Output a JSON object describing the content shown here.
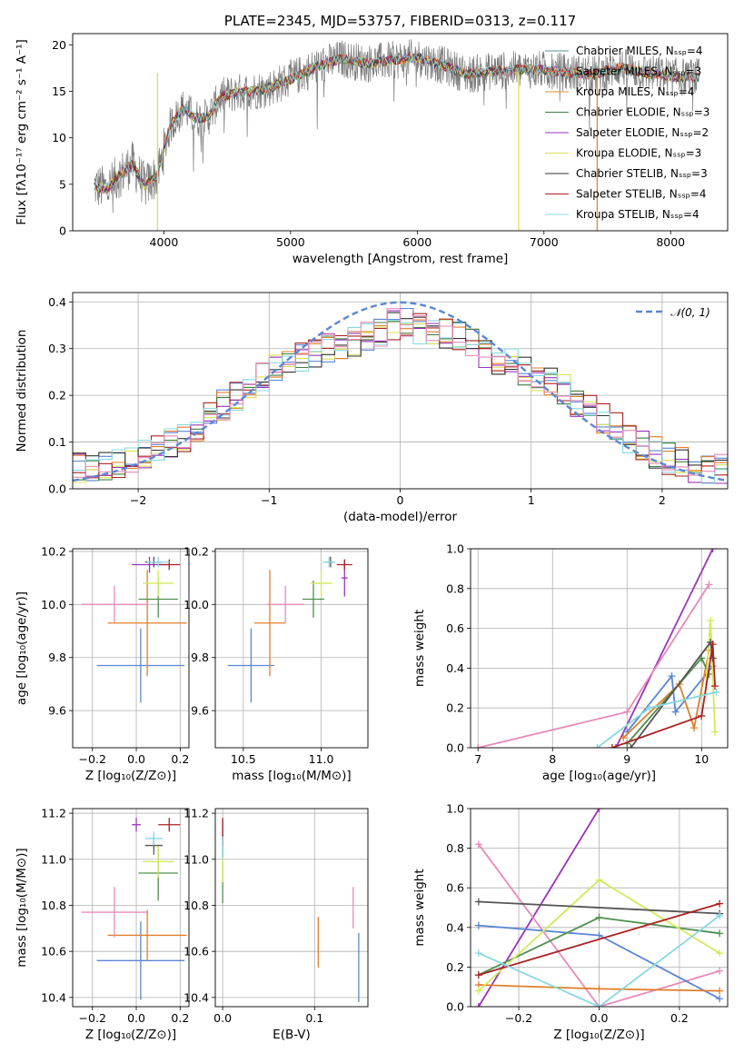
{
  "chart_data": [
    {
      "type": "line",
      "title": "PLATE=2345, MJD=53757, FIBERID=0313, z=0.117",
      "xlabel": "wavelength [Angstrom, rest frame]",
      "ylabel": "Flux [fλ10⁻¹⁷ erg cm⁻² s⁻¹ A⁻¹]",
      "xlim": [
        3280,
        8450
      ],
      "ylim": [
        0,
        21.2
      ],
      "xticks": [
        4000,
        5000,
        6000,
        7000,
        8000
      ],
      "yticks": [
        0,
        5,
        10,
        15,
        20
      ],
      "grid": false,
      "legend_position": "top-right",
      "spectrum_envelope": {
        "x": [
          3450,
          3550,
          3650,
          3750,
          3850,
          3950,
          4050,
          4150,
          4250,
          4350,
          4450,
          4600,
          4800,
          5000,
          5200,
          5400,
          5600,
          5800,
          6000,
          6200,
          6400,
          6600,
          6800,
          7000,
          7200,
          7400,
          7600,
          7800,
          8000,
          8200
        ],
        "y": [
          4.8,
          4.5,
          6.0,
          7.2,
          4.8,
          6.0,
          11.3,
          13.2,
          12.1,
          12.2,
          14.4,
          14.9,
          15.2,
          16.3,
          17.6,
          18.5,
          18.0,
          18.3,
          18.6,
          17.8,
          16.8,
          17.2,
          17.3,
          17.3,
          17.0,
          16.8,
          17.6,
          17.0,
          16.6,
          16.5
        ]
      },
      "series": [
        {
          "name": "Chabrier MILES, Nₛₛₚ=4",
          "color": "#5a8f8f"
        },
        {
          "name": "Salpeter MILES, Nₛₛₚ=3",
          "color": "#e06060"
        },
        {
          "name": "Kroupa MILES, Nₛₛₚ=4",
          "color": "#d98c3a"
        },
        {
          "name": "Chabrier ELODIE, Nₛₛₚ=3",
          "color": "#3f7f3f"
        },
        {
          "name": "Salpeter ELODIE, Nₛₛₚ=2",
          "color": "#9933bb"
        },
        {
          "name": "Kroupa ELODIE, Nₛₛₚ=3",
          "color": "#d8e05a"
        },
        {
          "name": "Chabrier STELIB, Nₛₛₚ=3",
          "color": "#333333"
        },
        {
          "name": "Salpeter STELIB, Nₛₛₚ=4",
          "color": "#aa2222"
        },
        {
          "name": "Kroupa STELIB, Nₛₛₚ=4",
          "color": "#88d8e0"
        }
      ]
    },
    {
      "type": "line",
      "xlabel": "(data-model)/error",
      "ylabel": "Normed distribution",
      "xlim": [
        -2.5,
        2.5
      ],
      "ylim": [
        0,
        0.42
      ],
      "xticks": [
        -2,
        -1,
        0,
        1,
        2
      ],
      "yticks": [
        0.0,
        0.1,
        0.2,
        0.3,
        0.4
      ],
      "grid": true,
      "legend": "𝒩(0, 1)",
      "legend_position": "top-right",
      "x": [
        -2.4,
        -2.2,
        -2.0,
        -1.8,
        -1.6,
        -1.4,
        -1.2,
        -1.0,
        -0.8,
        -0.6,
        -0.4,
        -0.2,
        0.0,
        0.2,
        0.4,
        0.6,
        0.8,
        1.0,
        1.2,
        1.4,
        1.6,
        1.8,
        2.0,
        2.2,
        2.4
      ],
      "histogram_mean": [
        0.045,
        0.055,
        0.07,
        0.09,
        0.12,
        0.17,
        0.21,
        0.25,
        0.28,
        0.3,
        0.31,
        0.33,
        0.36,
        0.34,
        0.33,
        0.3,
        0.27,
        0.25,
        0.22,
        0.18,
        0.14,
        0.1,
        0.07,
        0.05,
        0.04
      ]
    },
    {
      "type": "scatter",
      "xlabel": "Z [log₁₀(Z/Z⊙)]",
      "ylabel": "age  [log₁₀(age/yr)]",
      "xlim": [
        -0.29,
        0.24
      ],
      "ylim": [
        9.46,
        10.21
      ],
      "xticks": [
        -0.2,
        0.0,
        0.2
      ],
      "yticks": [
        9.6,
        9.8,
        10.0,
        10.2
      ],
      "points": [
        {
          "x": 0.02,
          "y": 9.77,
          "xerr": 0.2,
          "yerr": 0.14,
          "color": "#5b86d6"
        },
        {
          "x": 0.05,
          "y": 9.93,
          "xerr": 0.18,
          "yerr": 0.2,
          "color": "#e07f2a"
        },
        {
          "x": -0.1,
          "y": 10.0,
          "xerr": 0.15,
          "yerr": 0.07,
          "color": "#e88ab8"
        },
        {
          "x": 0.1,
          "y": 10.02,
          "xerr": 0.09,
          "yerr": 0.07,
          "color": "#4e8f4e"
        },
        {
          "x": 0.1,
          "y": 10.08,
          "xerr": 0.07,
          "yerr": 0.05,
          "color": "#d4e85a"
        },
        {
          "x": 0.08,
          "y": 10.16,
          "xerr": 0.04,
          "yerr": 0.02,
          "color": "#555555"
        },
        {
          "x": 0.06,
          "y": 10.15,
          "xerr": 0.08,
          "yerr": 0.03,
          "color": "#9933bb"
        },
        {
          "x": 0.15,
          "y": 10.15,
          "xerr": 0.05,
          "yerr": 0.02,
          "color": "#aa2222"
        },
        {
          "x": 0.1,
          "y": 10.16,
          "xerr": 0.05,
          "yerr": 0.02,
          "color": "#88d8e0"
        }
      ]
    },
    {
      "type": "scatter",
      "xlabel": "mass [log₁₀(M/M⊙)]",
      "xlim": [
        10.32,
        11.3
      ],
      "ylim": [
        9.46,
        10.21
      ],
      "xticks": [
        10.5,
        11.0
      ],
      "yticks": [
        9.6,
        9.8,
        10.0,
        10.2
      ],
      "points": [
        {
          "x": 10.55,
          "y": 9.77,
          "xerr": 0.15,
          "yerr": 0.14,
          "color": "#5b86d6"
        },
        {
          "x": 10.67,
          "y": 9.93,
          "xerr": 0.1,
          "yerr": 0.2,
          "color": "#e07f2a"
        },
        {
          "x": 10.77,
          "y": 10.0,
          "xerr": 0.12,
          "yerr": 0.07,
          "color": "#e88ab8"
        },
        {
          "x": 10.95,
          "y": 10.02,
          "xerr": 0.07,
          "yerr": 0.07,
          "color": "#4e8f4e"
        },
        {
          "x": 11.0,
          "y": 10.08,
          "xerr": 0.07,
          "yerr": 0.05,
          "color": "#d4e85a"
        },
        {
          "x": 11.06,
          "y": 10.16,
          "xerr": 0.03,
          "yerr": 0.02,
          "color": "#555555"
        },
        {
          "x": 11.15,
          "y": 10.1,
          "xerr": 0.02,
          "yerr": 0.07,
          "color": "#9933bb"
        },
        {
          "x": 11.15,
          "y": 10.15,
          "xerr": 0.05,
          "yerr": 0.02,
          "color": "#aa2222"
        },
        {
          "x": 11.05,
          "y": 10.16,
          "xerr": 0.04,
          "yerr": 0.02,
          "color": "#88d8e0"
        }
      ]
    },
    {
      "type": "line",
      "xlabel": "age  [log₁₀(age/yr)]",
      "ylabel": "mass weight",
      "xlim": [
        6.9,
        10.35
      ],
      "ylim": [
        0,
        1.0
      ],
      "xticks": [
        7,
        8,
        9,
        10
      ],
      "yticks": [
        0.0,
        0.2,
        0.4,
        0.6,
        0.8,
        1.0
      ],
      "grid": true,
      "series": [
        {
          "color": "#9933bb",
          "x": [
            8.85,
            10.15
          ],
          "y": [
            0.0,
            1.0
          ]
        },
        {
          "color": "#e88ab8",
          "x": [
            7.0,
            9.0,
            10.1
          ],
          "y": [
            0.0,
            0.18,
            0.82
          ]
        },
        {
          "color": "#5b86d6",
          "x": [
            9.0,
            9.6,
            9.65,
            10.15
          ],
          "y": [
            0.08,
            0.36,
            0.18,
            0.41
          ]
        },
        {
          "color": "#e07f2a",
          "x": [
            8.95,
            9.7,
            9.9,
            10.1
          ],
          "y": [
            0.05,
            0.32,
            0.1,
            0.49
          ]
        },
        {
          "color": "#4e8f4e",
          "x": [
            9.0,
            10.0,
            10.1
          ],
          "y": [
            0.02,
            0.45,
            0.37
          ]
        },
        {
          "color": "#d4e85a",
          "x": [
            10.05,
            10.12,
            10.18
          ],
          "y": [
            0.27,
            0.64,
            0.08
          ]
        },
        {
          "color": "#555555",
          "x": [
            9.05,
            10.12,
            10.15
          ],
          "y": [
            0.0,
            0.53,
            0.45
          ]
        },
        {
          "color": "#aa2222",
          "x": [
            8.8,
            10.0,
            10.15,
            10.18
          ],
          "y": [
            0.0,
            0.16,
            0.52,
            0.31
          ]
        },
        {
          "color": "#88d8e0",
          "x": [
            8.6,
            9.3,
            10.2
          ],
          "y": [
            0.0,
            0.2,
            0.28
          ]
        }
      ]
    },
    {
      "type": "scatter",
      "xlabel": "Z [log₁₀(Z/Z⊙)]",
      "ylabel": "mass [log₁₀(M/M⊙)]",
      "xlim": [
        -0.29,
        0.24
      ],
      "ylim": [
        10.36,
        11.22
      ],
      "xticks": [
        -0.2,
        0.0,
        0.2
      ],
      "yticks": [
        10.4,
        10.6,
        10.8,
        11.0,
        11.2
      ],
      "points": [
        {
          "x": 0.02,
          "y": 10.56,
          "xerr": 0.2,
          "yerr": 0.17,
          "color": "#5b86d6"
        },
        {
          "x": 0.05,
          "y": 10.67,
          "xerr": 0.18,
          "yerr": 0.11,
          "color": "#e07f2a"
        },
        {
          "x": -0.1,
          "y": 10.77,
          "xerr": 0.15,
          "yerr": 0.11,
          "color": "#e88ab8"
        },
        {
          "x": 0.1,
          "y": 10.94,
          "xerr": 0.09,
          "yerr": 0.12,
          "color": "#4e8f4e"
        },
        {
          "x": 0.1,
          "y": 10.99,
          "xerr": 0.07,
          "yerr": 0.07,
          "color": "#d4e85a"
        },
        {
          "x": 0.08,
          "y": 11.06,
          "xerr": 0.04,
          "yerr": 0.04,
          "color": "#555555"
        },
        {
          "x": 0.0,
          "y": 11.15,
          "xerr": 0.02,
          "yerr": 0.03,
          "color": "#9933bb"
        },
        {
          "x": 0.15,
          "y": 11.15,
          "xerr": 0.05,
          "yerr": 0.03,
          "color": "#aa2222"
        },
        {
          "x": 0.08,
          "y": 11.09,
          "xerr": 0.04,
          "yerr": 0.03,
          "color": "#88d8e0"
        }
      ]
    },
    {
      "type": "scatter",
      "xlabel": "E(B-V)",
      "xlim": [
        -0.008,
        0.158
      ],
      "ylim": [
        10.36,
        11.22
      ],
      "xticks": [
        0.0,
        0.1
      ],
      "yticks": [
        10.4,
        10.6,
        10.8,
        11.0,
        11.2
      ],
      "points": [
        {
          "x": 0.148,
          "y": 10.53,
          "yerr": 0.15,
          "color": "#5b86d6"
        },
        {
          "x": 0.104,
          "y": 10.64,
          "yerr": 0.11,
          "color": "#e07f2a"
        },
        {
          "x": 0.142,
          "y": 10.79,
          "yerr": 0.09,
          "color": "#e88ab8"
        },
        {
          "x": 0.0,
          "y": 10.9,
          "yerr": 0.09,
          "color": "#4e8f4e"
        },
        {
          "x": 0.0,
          "y": 10.97,
          "yerr": 0.07,
          "color": "#d4e85a"
        },
        {
          "x": 0.0,
          "y": 11.06,
          "yerr": 0.05,
          "color": "#555555"
        },
        {
          "x": 0.0,
          "y": 11.13,
          "yerr": 0.04,
          "color": "#9933bb"
        },
        {
          "x": 0.0,
          "y": 11.12,
          "yerr": 0.06,
          "color": "#aa2222"
        },
        {
          "x": 0.0,
          "y": 11.05,
          "yerr": 0.05,
          "color": "#88d8e0"
        }
      ]
    },
    {
      "type": "line",
      "xlabel": "Z [log₁₀(Z/Z⊙)]",
      "ylabel": "mass weight",
      "xlim": [
        -0.32,
        0.32
      ],
      "ylim": [
        0,
        1.0
      ],
      "xticks": [
        -0.2,
        0.0,
        0.2
      ],
      "yticks": [
        0.0,
        0.2,
        0.4,
        0.6,
        0.8,
        1.0
      ],
      "grid": true,
      "series": [
        {
          "color": "#9933bb",
          "x": [
            -0.3,
            0.0
          ],
          "y": [
            0.0,
            1.0
          ]
        },
        {
          "color": "#e88ab8",
          "x": [
            -0.3,
            0.0,
            0.3
          ],
          "y": [
            0.82,
            0.0,
            0.18
          ]
        },
        {
          "color": "#5b86d6",
          "x": [
            -0.3,
            0.0,
            0.3
          ],
          "y": [
            0.41,
            0.36,
            0.04
          ]
        },
        {
          "color": "#e07f2a",
          "x": [
            -0.3,
            0.0,
            0.3
          ],
          "y": [
            0.11,
            0.09,
            0.08
          ]
        },
        {
          "color": "#4e8f4e",
          "x": [
            -0.3,
            0.0,
            0.3
          ],
          "y": [
            0.16,
            0.45,
            0.37
          ]
        },
        {
          "color": "#d4e85a",
          "x": [
            -0.3,
            0.0,
            0.3
          ],
          "y": [
            0.08,
            0.64,
            0.27
          ]
        },
        {
          "color": "#555555",
          "x": [
            -0.3,
            0.3
          ],
          "y": [
            0.53,
            0.47
          ]
        },
        {
          "color": "#aa2222",
          "x": [
            -0.3,
            0.3
          ],
          "y": [
            0.16,
            0.52
          ]
        },
        {
          "color": "#88d8e0",
          "x": [
            -0.3,
            0.0,
            0.3
          ],
          "y": [
            0.27,
            0.0,
            0.46
          ]
        }
      ]
    }
  ]
}
